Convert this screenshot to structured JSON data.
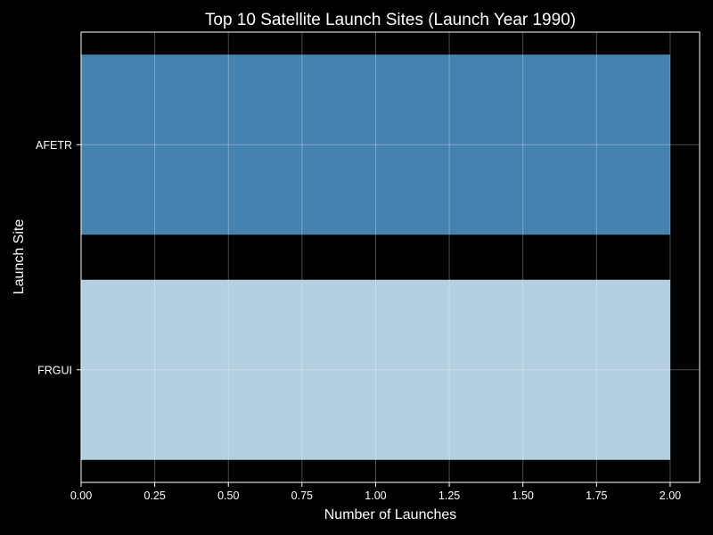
{
  "chart_data": {
    "type": "bar",
    "orientation": "horizontal",
    "title": "Top 10 Satellite Launch Sites (Launch Year 1990)",
    "xlabel": "Number of Launches",
    "ylabel": "Launch Site",
    "categories": [
      "AFETR",
      "FRGUI"
    ],
    "values": [
      2,
      2
    ],
    "bar_colors": [
      "#4682b0",
      "#b3cfe0"
    ],
    "xlim": [
      0,
      2.1
    ],
    "xticks": [
      "0.00",
      "0.25",
      "0.50",
      "0.75",
      "1.00",
      "1.25",
      "1.50",
      "1.75",
      "2.00"
    ],
    "grid": true,
    "background": "#000000",
    "foreground": "#ffffff"
  }
}
